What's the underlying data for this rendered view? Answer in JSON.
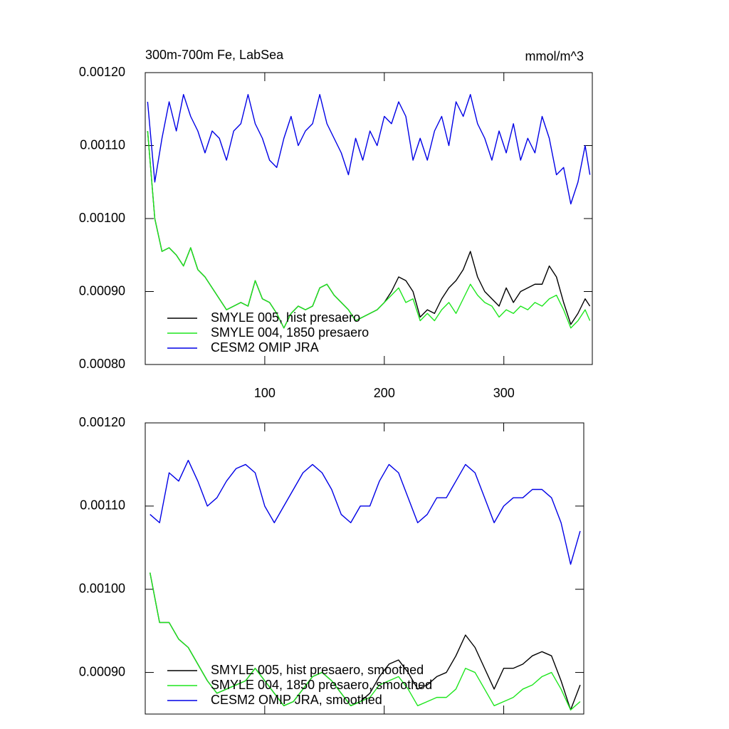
{
  "chart_data": [
    {
      "type": "line",
      "title": "300m-700m Fe, LabSea",
      "units": "mmol/m^3",
      "x": [
        2,
        8,
        14,
        20,
        26,
        32,
        38,
        44,
        50,
        56,
        62,
        68,
        74,
        80,
        86,
        92,
        98,
        104,
        110,
        116,
        122,
        128,
        134,
        140,
        146,
        152,
        158,
        164,
        170,
        176,
        182,
        188,
        194,
        200,
        206,
        212,
        218,
        224,
        230,
        236,
        242,
        248,
        254,
        260,
        266,
        272,
        278,
        284,
        290,
        296,
        302,
        308,
        314,
        320,
        326,
        332,
        338,
        344,
        350,
        356,
        362,
        368,
        372
      ],
      "xlim": [
        0,
        374
      ],
      "xticks": [
        100,
        200,
        300
      ],
      "ylim": [
        0.0008,
        0.0012
      ],
      "yticks": [
        {
          "value": 0.0008,
          "label": "0.00080"
        },
        {
          "value": 0.0009,
          "label": "0.00090"
        },
        {
          "value": 0.001,
          "label": "0.00100"
        },
        {
          "value": 0.0011,
          "label": "0.00110"
        },
        {
          "value": 0.0012,
          "label": "0.00120"
        }
      ],
      "series": [
        {
          "name": "SMYLE 005, hist presaero",
          "color": "#000000",
          "values": [
            0.00112,
            0.001,
            0.000955,
            0.00096,
            0.00095,
            0.000935,
            0.00096,
            0.00093,
            0.00092,
            0.000905,
            0.00089,
            0.000875,
            0.00088,
            0.000885,
            0.00088,
            0.000915,
            0.00089,
            0.000885,
            0.00087,
            0.00085,
            0.00087,
            0.00088,
            0.000875,
            0.00088,
            0.000905,
            0.00091,
            0.000895,
            0.000885,
            0.000875,
            0.00086,
            0.000865,
            0.00087,
            0.000875,
            0.000885,
            0.0009,
            0.00092,
            0.000915,
            0.0009,
            0.000865,
            0.000875,
            0.00087,
            0.00089,
            0.000905,
            0.000915,
            0.00093,
            0.000955,
            0.00092,
            0.0009,
            0.00089,
            0.00088,
            0.000905,
            0.000885,
            0.0009,
            0.000905,
            0.00091,
            0.00091,
            0.000935,
            0.00092,
            0.000885,
            0.000855,
            0.00087,
            0.00089,
            0.00088
          ]
        },
        {
          "name": "SMYLE 004, 1850 presaero",
          "color": "#1ee61e",
          "values": [
            0.00112,
            0.001,
            0.000955,
            0.00096,
            0.00095,
            0.000935,
            0.00096,
            0.00093,
            0.00092,
            0.000905,
            0.00089,
            0.000875,
            0.00088,
            0.000885,
            0.00088,
            0.000915,
            0.00089,
            0.000885,
            0.00087,
            0.00085,
            0.00087,
            0.00088,
            0.000875,
            0.00088,
            0.000905,
            0.00091,
            0.000895,
            0.000885,
            0.000875,
            0.00086,
            0.000865,
            0.00087,
            0.000875,
            0.000885,
            0.000895,
            0.000905,
            0.000885,
            0.00089,
            0.00086,
            0.00087,
            0.00086,
            0.000875,
            0.000885,
            0.00087,
            0.00089,
            0.00091,
            0.000895,
            0.000885,
            0.00088,
            0.000865,
            0.000875,
            0.00087,
            0.00088,
            0.000875,
            0.000885,
            0.00088,
            0.00089,
            0.000895,
            0.000875,
            0.00085,
            0.00086,
            0.000875,
            0.00086
          ]
        },
        {
          "name": "CESM2 OMIP JRA",
          "color": "#0000e6",
          "values": [
            0.00116,
            0.00105,
            0.00111,
            0.00116,
            0.00112,
            0.00117,
            0.00114,
            0.00112,
            0.00109,
            0.00112,
            0.00111,
            0.00108,
            0.00112,
            0.00113,
            0.00117,
            0.00113,
            0.00111,
            0.00108,
            0.00107,
            0.00111,
            0.00114,
            0.0011,
            0.00112,
            0.00113,
            0.00117,
            0.00113,
            0.00111,
            0.00109,
            0.00106,
            0.00111,
            0.00108,
            0.00112,
            0.0011,
            0.00114,
            0.00113,
            0.00116,
            0.00114,
            0.00108,
            0.00111,
            0.00108,
            0.00112,
            0.00114,
            0.0011,
            0.00116,
            0.00114,
            0.00117,
            0.00113,
            0.00111,
            0.00108,
            0.00112,
            0.00109,
            0.00113,
            0.00108,
            0.00111,
            0.00109,
            0.00114,
            0.00111,
            0.00106,
            0.00107,
            0.00102,
            0.00105,
            0.0011,
            0.00106
          ]
        }
      ]
    },
    {
      "type": "line",
      "x": [
        4,
        12,
        20,
        28,
        36,
        44,
        52,
        60,
        68,
        76,
        84,
        92,
        100,
        108,
        116,
        124,
        132,
        140,
        148,
        156,
        164,
        172,
        180,
        188,
        196,
        204,
        212,
        220,
        228,
        236,
        244,
        252,
        260,
        268,
        276,
        284,
        292,
        300,
        308,
        316,
        324,
        332,
        340,
        348,
        356,
        364
      ],
      "xlim": [
        0,
        367
      ],
      "xticks": [
        100,
        200,
        300
      ],
      "ylim": [
        0.00085,
        0.0012
      ],
      "yticks": [
        {
          "value": 0.0009,
          "label": "0.00090"
        },
        {
          "value": 0.001,
          "label": "0.00100"
        },
        {
          "value": 0.0011,
          "label": "0.00110"
        },
        {
          "value": 0.0012,
          "label": "0.00120"
        }
      ],
      "series": [
        {
          "name": "SMYLE 005, hist presaero, smoothed",
          "color": "#000000",
          "values": [
            0.00102,
            0.00096,
            0.00096,
            0.00094,
            0.00093,
            0.00091,
            0.00089,
            0.000875,
            0.00088,
            0.000885,
            0.00089,
            0.000905,
            0.00089,
            0.000875,
            0.00086,
            0.000865,
            0.00088,
            0.000895,
            0.0009,
            0.00089,
            0.000875,
            0.00086,
            0.000865,
            0.000875,
            0.000895,
            0.00091,
            0.000915,
            0.0009,
            0.00088,
            0.000885,
            0.000895,
            0.0009,
            0.00092,
            0.000945,
            0.00093,
            0.000905,
            0.00088,
            0.000905,
            0.000905,
            0.00091,
            0.00092,
            0.000925,
            0.00092,
            0.00089,
            0.000855,
            0.000885
          ]
        },
        {
          "name": "SMYLE 004, 1850 presaero, smoothed",
          "color": "#1ee61e",
          "values": [
            0.00102,
            0.00096,
            0.00096,
            0.00094,
            0.00093,
            0.00091,
            0.00089,
            0.000875,
            0.00088,
            0.000885,
            0.00089,
            0.000905,
            0.00089,
            0.000875,
            0.00086,
            0.000865,
            0.00088,
            0.000895,
            0.0009,
            0.00089,
            0.000875,
            0.00086,
            0.000865,
            0.00087,
            0.000885,
            0.00089,
            0.000895,
            0.00088,
            0.00086,
            0.000865,
            0.00087,
            0.00087,
            0.00088,
            0.000905,
            0.0009,
            0.00088,
            0.00086,
            0.000865,
            0.00087,
            0.00088,
            0.000885,
            0.000895,
            0.0009,
            0.00088,
            0.000855,
            0.000865
          ]
        },
        {
          "name": "CESM2 OMIP JRA, smoothed",
          "color": "#0000e6",
          "values": [
            0.00109,
            0.00108,
            0.00114,
            0.00113,
            0.001155,
            0.00113,
            0.0011,
            0.00111,
            0.00113,
            0.001145,
            0.00115,
            0.00114,
            0.0011,
            0.00108,
            0.0011,
            0.00112,
            0.00114,
            0.00115,
            0.00114,
            0.00112,
            0.00109,
            0.00108,
            0.0011,
            0.0011,
            0.00113,
            0.00115,
            0.00114,
            0.00111,
            0.00108,
            0.00109,
            0.00111,
            0.00111,
            0.00113,
            0.00115,
            0.00114,
            0.00111,
            0.00108,
            0.0011,
            0.00111,
            0.00111,
            0.00112,
            0.00112,
            0.00111,
            0.00108,
            0.00103,
            0.00107
          ]
        }
      ]
    }
  ]
}
